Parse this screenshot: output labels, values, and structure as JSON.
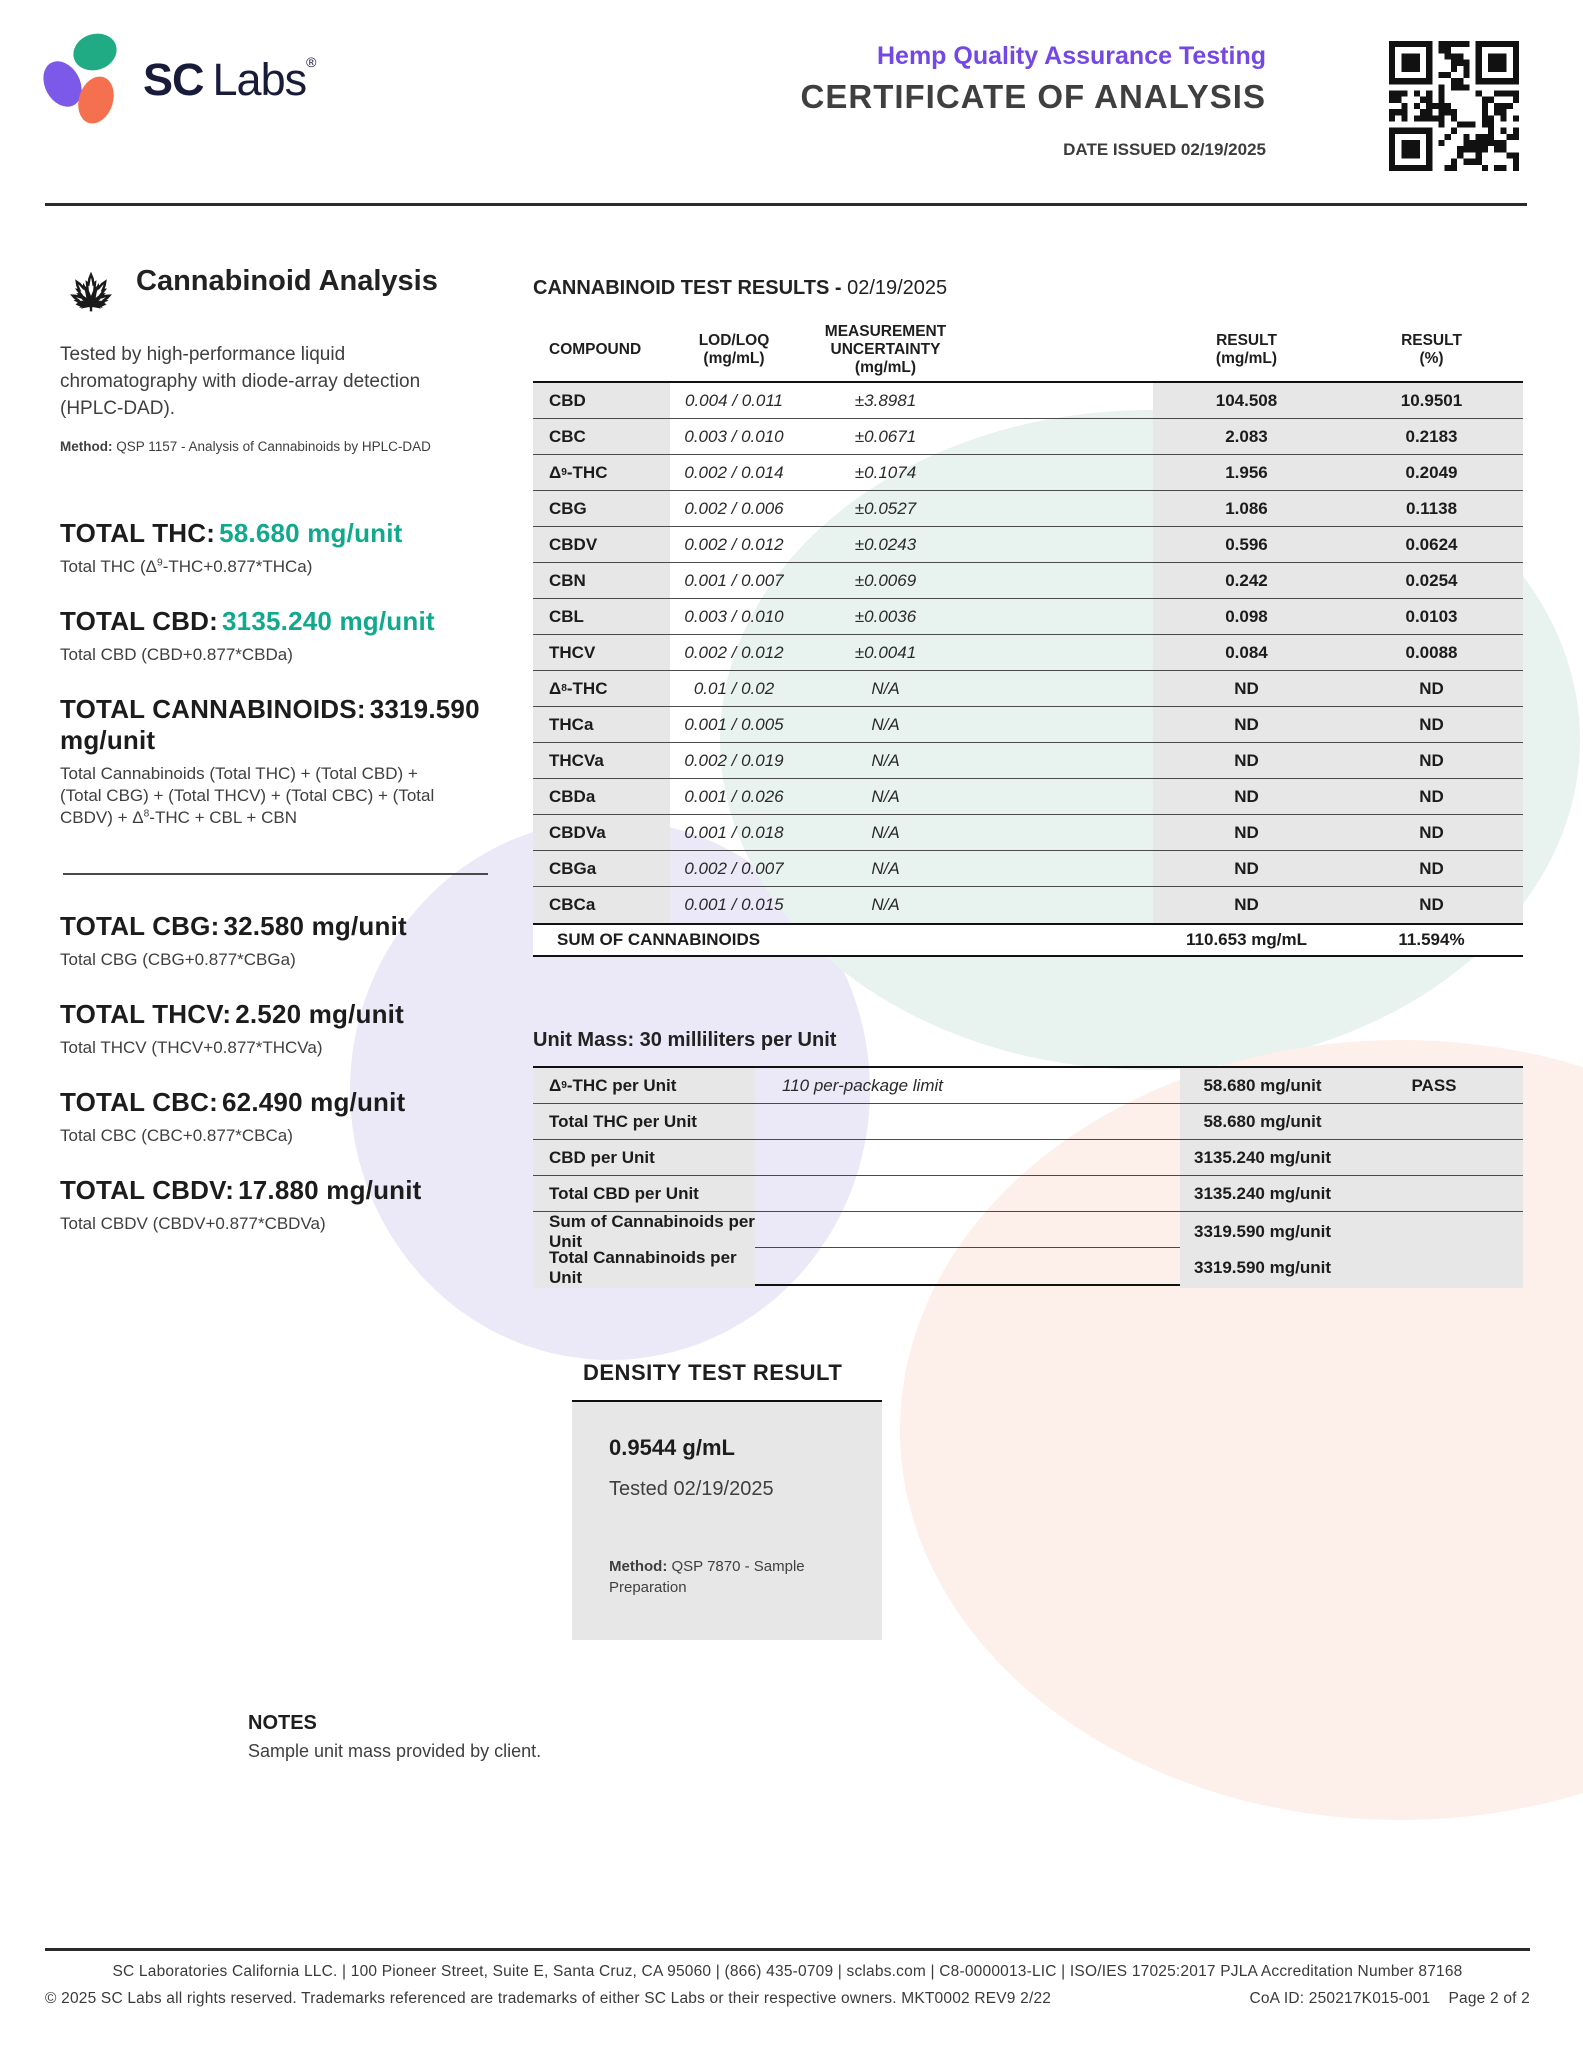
{
  "header": {
    "brand": {
      "bold": "SC",
      "light": "Labs",
      "reg": "®"
    },
    "program": "Hemp Quality Assurance Testing",
    "title": "CERTIFICATE OF ANALYSIS",
    "date_issued": "DATE ISSUED 02/19/2025"
  },
  "analysis": {
    "title": "Cannabinoid Analysis",
    "description": "Tested by high-performance liquid chromatography with diode-array detection (HPLC-DAD).",
    "method_label": "Method:",
    "method": "QSP 1157 - Analysis of Cannabinoids by HPLC-DAD"
  },
  "totals": [
    {
      "label": "TOTAL THC:",
      "value": "58.680 mg/unit",
      "value_color": "green",
      "formula": "Total THC (Δ9-THC+0.877*THCa)",
      "divider_before": false
    },
    {
      "label": "TOTAL CBD:",
      "value": "3135.240 mg/unit",
      "value_color": "green",
      "formula": "Total CBD (CBD+0.877*CBDa)",
      "divider_before": false
    },
    {
      "label": "TOTAL CANNABINOIDS:",
      "value": "3319.590 mg/unit",
      "value_color": "dark",
      "formula": "Total Cannabinoids (Total THC) + (Total CBD) + (Total CBG) + (Total THCV) + (Total CBC) + (Total CBDV) + Δ8-THC + CBL + CBN",
      "divider_before": false
    },
    {
      "label": "TOTAL CBG:",
      "value": "32.580 mg/unit",
      "value_color": "dark",
      "formula": "Total CBG (CBG+0.877*CBGa)",
      "divider_before": true
    },
    {
      "label": "TOTAL THCV:",
      "value": "2.520 mg/unit",
      "value_color": "dark",
      "formula": "Total THCV (THCV+0.877*THCVa)",
      "divider_before": false
    },
    {
      "label": "TOTAL CBC:",
      "value": "62.490 mg/unit",
      "value_color": "dark",
      "formula": "Total CBC (CBC+0.877*CBCa)",
      "divider_before": false
    },
    {
      "label": "TOTAL CBDV:",
      "value": "17.880 mg/unit",
      "value_color": "dark",
      "formula": "Total CBDV (CBDV+0.877*CBDVa)",
      "divider_before": false
    }
  ],
  "results": {
    "heading": "CANNABINOID TEST RESULTS -",
    "heading_date": "02/19/2025",
    "columns": [
      {
        "line1": "COMPOUND",
        "line2": ""
      },
      {
        "line1": "LOD/LOQ",
        "line2": "(mg/mL)"
      },
      {
        "line1": "MEASUREMENT",
        "line2": "UNCERTAINTY (mg/mL)"
      },
      {
        "line1": "RESULT",
        "line2": "(mg/mL)"
      },
      {
        "line1": "RESULT",
        "line2": "(%)"
      }
    ],
    "rows": [
      {
        "compound": "CBD",
        "lod_loq": "0.004 / 0.011",
        "uncertainty": "±3.8981",
        "result_mg": "104.508",
        "result_pct": "10.9501"
      },
      {
        "compound": "CBC",
        "lod_loq": "0.003 / 0.010",
        "uncertainty": "±0.0671",
        "result_mg": "2.083",
        "result_pct": "0.2183"
      },
      {
        "compound": "Δ9-THC",
        "lod_loq": "0.002 / 0.014",
        "uncertainty": "±0.1074",
        "result_mg": "1.956",
        "result_pct": "0.2049"
      },
      {
        "compound": "CBG",
        "lod_loq": "0.002 / 0.006",
        "uncertainty": "±0.0527",
        "result_mg": "1.086",
        "result_pct": "0.1138"
      },
      {
        "compound": "CBDV",
        "lod_loq": "0.002 / 0.012",
        "uncertainty": "±0.0243",
        "result_mg": "0.596",
        "result_pct": "0.0624"
      },
      {
        "compound": "CBN",
        "lod_loq": "0.001 / 0.007",
        "uncertainty": "±0.0069",
        "result_mg": "0.242",
        "result_pct": "0.0254"
      },
      {
        "compound": "CBL",
        "lod_loq": "0.003 / 0.010",
        "uncertainty": "±0.0036",
        "result_mg": "0.098",
        "result_pct": "0.0103"
      },
      {
        "compound": "THCV",
        "lod_loq": "0.002 / 0.012",
        "uncertainty": "±0.0041",
        "result_mg": "0.084",
        "result_pct": "0.0088"
      },
      {
        "compound": "Δ8-THC",
        "lod_loq": "0.01 / 0.02",
        "uncertainty": "N/A",
        "result_mg": "ND",
        "result_pct": "ND"
      },
      {
        "compound": "THCa",
        "lod_loq": "0.001 / 0.005",
        "uncertainty": "N/A",
        "result_mg": "ND",
        "result_pct": "ND"
      },
      {
        "compound": "THCVa",
        "lod_loq": "0.002 / 0.019",
        "uncertainty": "N/A",
        "result_mg": "ND",
        "result_pct": "ND"
      },
      {
        "compound": "CBDa",
        "lod_loq": "0.001 / 0.026",
        "uncertainty": "N/A",
        "result_mg": "ND",
        "result_pct": "ND"
      },
      {
        "compound": "CBDVa",
        "lod_loq": "0.001 / 0.018",
        "uncertainty": "N/A",
        "result_mg": "ND",
        "result_pct": "ND"
      },
      {
        "compound": "CBGa",
        "lod_loq": "0.002 / 0.007",
        "uncertainty": "N/A",
        "result_mg": "ND",
        "result_pct": "ND"
      },
      {
        "compound": "CBCa",
        "lod_loq": "0.001 / 0.015",
        "uncertainty": "N/A",
        "result_mg": "ND",
        "result_pct": "ND"
      }
    ],
    "sum_row": {
      "label": "SUM OF CANNABINOIDS",
      "result_mg": "110.653 mg/mL",
      "result_pct": "11.594%"
    }
  },
  "unit_mass": {
    "heading": "Unit Mass: 30 milliliters per Unit",
    "rows": [
      {
        "label": "Δ9-THC per Unit",
        "limit": "110 per-package limit",
        "value": "58.680 mg/unit",
        "status": "PASS"
      },
      {
        "label": "Total THC per Unit",
        "limit": "",
        "value": "58.680 mg/unit",
        "status": ""
      },
      {
        "label": "CBD per Unit",
        "limit": "",
        "value": "3135.240 mg/unit",
        "status": ""
      },
      {
        "label": "Total CBD per Unit",
        "limit": "",
        "value": "3135.240 mg/unit",
        "status": ""
      },
      {
        "label": "Sum of Cannabinoids per Unit",
        "limit": "",
        "value": "3319.590 mg/unit",
        "status": ""
      },
      {
        "label": "Total Cannabinoids per Unit",
        "limit": "",
        "value": "3319.590 mg/unit",
        "status": ""
      }
    ]
  },
  "density": {
    "heading": "DENSITY TEST RESULT",
    "value": "0.9544 g/mL",
    "tested": "Tested 02/19/2025",
    "method_label": "Method:",
    "method": "QSP 7870 - Sample Preparation"
  },
  "notes": {
    "heading": "NOTES",
    "text": "Sample unit mass provided by client."
  },
  "footer": {
    "line1": "SC Laboratories California LLC. | 100 Pioneer Street, Suite E, Santa Cruz, CA 95060 | (866) 435-0709 | sclabs.com | C8-0000013-LIC | ISO/IES 17025:2017 PJLA Accreditation Number 87168",
    "line2": "© 2025 SC Labs all rights reserved. Trademarks referenced are trademarks of either SC Labs or their respective owners. MKT0002 REV9 2/22",
    "coa_id": "CoA ID: 250217K015-001",
    "page": "Page 2 of 2"
  },
  "icons": {
    "logo_petals": "sclabs-petals-icon",
    "leaf": "cannabis-leaf-icon",
    "qr": "qr-code"
  },
  "colors": {
    "accent_green": "#10a98e",
    "brand_purple": "#7448e4",
    "petal_green": "#21ab84",
    "petal_purple": "#7c59e8",
    "petal_coral": "#f4704f",
    "table_gray": "#e8e7e7",
    "shape_lavender": "#ebe8f7",
    "shape_mint": "#e8f3ef",
    "shape_pink": "#fdefe9"
  }
}
